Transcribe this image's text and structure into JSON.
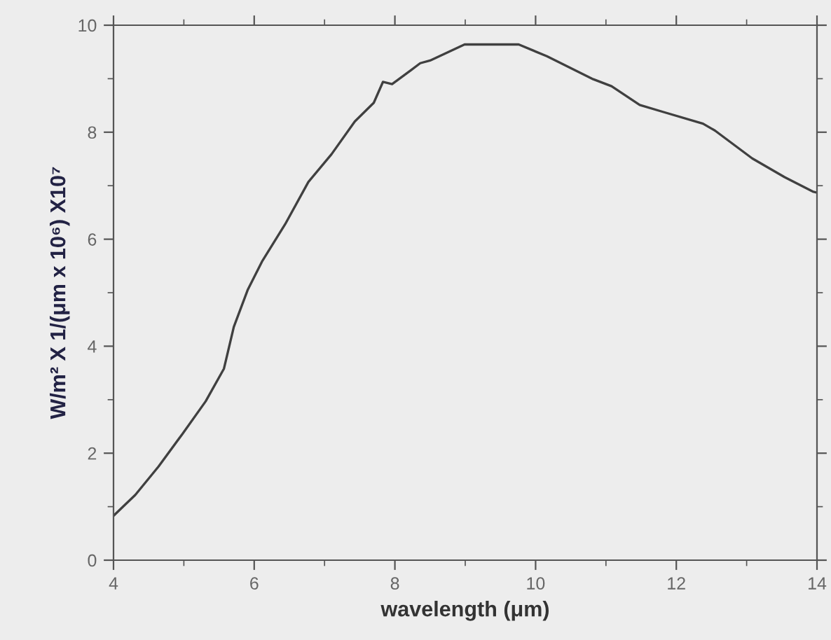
{
  "chart_data": {
    "type": "line",
    "xlabel": "wavelength (μm)",
    "ylabel": "W/m² X 1/(μm x 10⁶) X10⁷",
    "series": [
      {
        "color": "#404040",
        "x": [
          4.0,
          4.31,
          4.64,
          4.98,
          5.31,
          5.57,
          5.71,
          5.91,
          6.11,
          6.44,
          6.77,
          7.1,
          7.43,
          7.7,
          7.83,
          7.96,
          8.23,
          8.36,
          8.5,
          8.99,
          9.76,
          10.16,
          10.82,
          11.08,
          11.48,
          11.81,
          12.38,
          12.55,
          13.08,
          13.54,
          13.94,
          14.0
        ],
        "values": [
          0.83,
          1.22,
          1.75,
          2.36,
          2.97,
          3.58,
          4.36,
          5.06,
          5.58,
          6.28,
          7.07,
          7.59,
          8.2,
          8.55,
          8.94,
          8.9,
          9.16,
          9.29,
          9.34,
          9.64,
          9.64,
          9.42,
          8.99,
          8.86,
          8.51,
          8.38,
          8.16,
          8.03,
          7.51,
          7.16,
          6.89,
          6.87
        ]
      }
    ],
    "xlim": [
      4,
      14
    ],
    "xticks": [
      4,
      6,
      8,
      10,
      12,
      14
    ],
    "ylim": [
      0,
      10
    ],
    "yticks": [
      0,
      2,
      4,
      6,
      8,
      10
    ],
    "grid": false,
    "legend": false,
    "marker": "none",
    "line_style": "solid"
  }
}
